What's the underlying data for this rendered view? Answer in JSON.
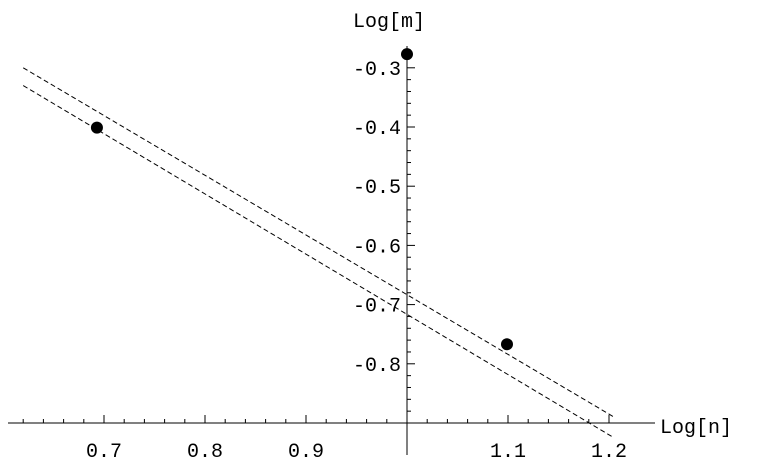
{
  "chart_data": {
    "type": "scatter",
    "title": "",
    "xlabel": "Log[n]",
    "ylabel": "Log[m]",
    "xlim": [
      0.62,
      1.21
    ],
    "ylim": [
      -0.9,
      -0.28
    ],
    "origin": [
      1.0,
      -0.9
    ],
    "grid": false,
    "legend": "none",
    "xticks": [
      {
        "value": 0.7,
        "label": "0.7"
      },
      {
        "value": 0.8,
        "label": "0.8"
      },
      {
        "value": 0.9,
        "label": "0.9"
      },
      {
        "value": 1.1,
        "label": "1.1"
      },
      {
        "value": 1.2,
        "label": "1.2"
      }
    ],
    "yticks": [
      {
        "value": -0.3,
        "label": "-0.3"
      },
      {
        "value": -0.4,
        "label": "-0.4"
      },
      {
        "value": -0.5,
        "label": "-0.5"
      },
      {
        "value": -0.6,
        "label": "-0.6"
      },
      {
        "value": -0.7,
        "label": "-0.7"
      },
      {
        "value": -0.8,
        "label": "-0.8"
      }
    ],
    "points": [
      {
        "x": 0.693,
        "y": -0.401
      },
      {
        "x": 1.0,
        "y": -0.277
      },
      {
        "x": 1.099,
        "y": -0.767
      }
    ],
    "lines": [
      {
        "style": "dashed",
        "x": [
          0.62,
          1.205
        ],
        "y": [
          -0.3,
          -0.89
        ]
      },
      {
        "style": "dashed",
        "x": [
          0.62,
          1.205
        ],
        "y": [
          -0.33,
          -0.925
        ]
      }
    ],
    "colors": {
      "axis": "#000000",
      "points": "#000000",
      "lines": "#000000"
    }
  }
}
